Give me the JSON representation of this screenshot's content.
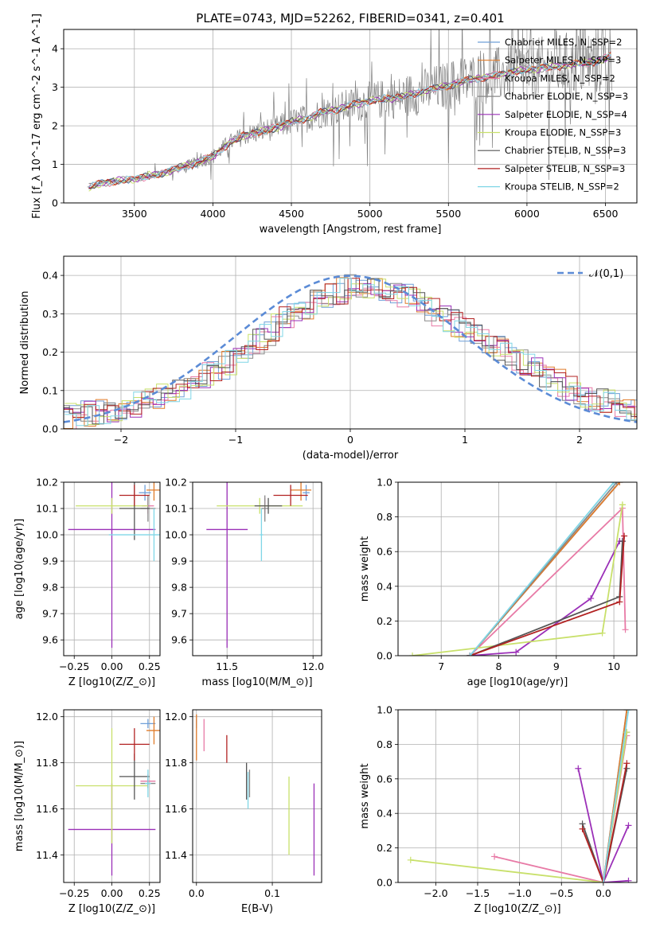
{
  "figure": {
    "title": "PLATE=0743, MJD=52262, FIBERID=0341, z=0.401"
  },
  "colors": {
    "Chabrier MILES": "#6f9fd8",
    "Salpeter MILES": "#e07b2a",
    "Kroupa MILES": "#e87aa6",
    "Chabrier ELODIE": "#888888",
    "Salpeter ELODIE": "#9b30b8",
    "Kroupa ELODIE": "#c8e06a",
    "Chabrier STELIB": "#555555",
    "Salpeter STELIB": "#b22222",
    "Kroupa STELIB": "#7fd6e6"
  },
  "chart_data": [
    {
      "id": "spectrum",
      "type": "line",
      "title": "PLATE=0743, MJD=52262, FIBERID=0341, z=0.401",
      "xlabel": "wavelength [Angstrom, rest frame]",
      "ylabel": "Flux [f_λ 10^-17 erg cm^-2 s^-1 A^-1]",
      "xlim": [
        3050,
        6700
      ],
      "ylim": [
        0,
        4.5
      ],
      "xticks": [
        3500,
        4000,
        4500,
        5000,
        5500,
        6000,
        6500
      ],
      "yticks": [
        0,
        1,
        2,
        3,
        4
      ],
      "legend": [
        "Chabrier MILES, N_SSP=2",
        "Salpeter MILES, N_SSP=3",
        "Kroupa MILES, N_SSP=2",
        "Chabrier ELODIE, N_SSP=3",
        "Salpeter ELODIE, N_SSP=4",
        "Kroupa ELODIE, N_SSP=3",
        "Chabrier STELIB, N_SSP=3",
        "Salpeter STELIB, N_SSP=3",
        "Kroupa STELIB, N_SSP=2"
      ],
      "legend_position": "right",
      "model_envelope": {
        "x": [
          3210,
          3300,
          3400,
          3500,
          3600,
          3700,
          3800,
          3900,
          4000,
          4100,
          4200,
          4300,
          4400,
          4500,
          4600,
          4700,
          4800,
          4900,
          5000,
          5100,
          5200,
          5300,
          5400,
          5500,
          5600,
          5700,
          5800,
          5900,
          6000,
          6100,
          6200,
          6300,
          6400,
          6500,
          6540
        ],
        "y": [
          0.4,
          0.52,
          0.58,
          0.62,
          0.7,
          0.8,
          0.92,
          1.05,
          1.2,
          1.55,
          1.75,
          1.85,
          1.95,
          2.1,
          2.2,
          2.35,
          2.45,
          2.55,
          2.65,
          2.7,
          2.75,
          2.85,
          2.95,
          3.05,
          3.15,
          3.25,
          3.3,
          3.4,
          3.45,
          3.5,
          3.55,
          3.6,
          3.65,
          3.75,
          3.8
        ]
      },
      "observed_spectrum_range": [
        3200,
        6540
      ]
    },
    {
      "id": "residuals",
      "type": "line",
      "xlabel": "(data-model)/error",
      "ylabel": "Normed distribution",
      "xlim": [
        -2.5,
        2.5
      ],
      "ylim": [
        0,
        0.45
      ],
      "xticks": [
        -2,
        -1,
        0,
        1,
        2
      ],
      "yticks": [
        0.0,
        0.1,
        0.2,
        0.3,
        0.4
      ],
      "legend": [
        "𝒩(0,1)"
      ],
      "legend_position": "top-right",
      "histogram_envelope": {
        "x": [
          -2.5,
          -2.0,
          -1.5,
          -1.0,
          -0.5,
          0.0,
          0.5,
          1.0,
          1.5,
          2.0,
          2.5
        ],
        "y": [
          0.03,
          0.05,
          0.1,
          0.18,
          0.3,
          0.37,
          0.35,
          0.26,
          0.18,
          0.09,
          0.05
        ]
      }
    },
    {
      "id": "age_vs_Z",
      "type": "scatter",
      "xlabel": "Z [log10(Z/Z_⊙)]",
      "ylabel": "age [log10(age/yr)]",
      "xlim": [
        -0.32,
        0.32
      ],
      "ylim": [
        9.54,
        10.2
      ],
      "xticks": [
        -0.25,
        0.0,
        0.25
      ],
      "yticks": [
        9.6,
        9.7,
        9.8,
        9.9,
        10.0,
        10.1,
        10.2
      ],
      "points": [
        {
          "model": "Chabrier MILES",
          "x": 0.22,
          "y": 10.16,
          "xerr": 0.04,
          "yerr": 0.03
        },
        {
          "model": "Salpeter MILES",
          "x": 0.28,
          "y": 10.17,
          "xerr": 0.05,
          "yerr": 0.04
        },
        {
          "model": "Kroupa MILES",
          "x": 0.24,
          "y": 10.11,
          "xerr": 0.04,
          "yerr": 0.03
        },
        {
          "model": "Chabrier ELODIE",
          "x": 0.24,
          "y": 10.1,
          "xerr": 0.05,
          "yerr": 0.05
        },
        {
          "model": "Salpeter ELODIE",
          "x": 0.0,
          "y": 10.02,
          "xerr": 0.29,
          "yerr": 0.45
        },
        {
          "model": "Kroupa ELODIE",
          "x": 0.0,
          "y": 10.11,
          "xerr": 0.24,
          "yerr": 0.03
        },
        {
          "model": "Chabrier STELIB",
          "x": 0.15,
          "y": 10.1,
          "xerr": 0.1,
          "yerr": 0.12
        },
        {
          "model": "Salpeter STELIB",
          "x": 0.15,
          "y": 10.15,
          "xerr": 0.1,
          "yerr": 0.04
        },
        {
          "model": "Kroupa STELIB",
          "x": 0.28,
          "y": 10.0,
          "xerr": 0.3,
          "yerr": 0.1
        }
      ]
    },
    {
      "id": "age_vs_mass",
      "type": "scatter",
      "xlabel": "mass [log10(M/M_⊙)]",
      "ylabel": "",
      "xlim": [
        11.3,
        12.05
      ],
      "ylim": [
        9.54,
        10.2
      ],
      "xticks": [
        11.5,
        12.0
      ],
      "yticks": [
        9.6,
        9.7,
        9.8,
        9.9,
        10.0,
        10.1,
        10.2
      ],
      "points": [
        {
          "model": "Chabrier MILES",
          "x": 11.96,
          "y": 10.16,
          "xerr": 0.02,
          "yerr": 0.03
        },
        {
          "model": "Salpeter MILES",
          "x": 11.93,
          "y": 10.17,
          "xerr": 0.06,
          "yerr": 0.04
        },
        {
          "model": "Kroupa MILES",
          "x": 11.72,
          "y": 10.11,
          "xerr": 0.03,
          "yerr": 0.03
        },
        {
          "model": "Chabrier ELODIE",
          "x": 11.72,
          "y": 10.1,
          "xerr": 0.02,
          "yerr": 0.05
        },
        {
          "model": "Salpeter ELODIE",
          "x": 11.5,
          "y": 10.02,
          "xerr": 0.12,
          "yerr": 0.45
        },
        {
          "model": "Kroupa ELODIE",
          "x": 11.69,
          "y": 10.11,
          "xerr": 0.25,
          "yerr": 0.03
        },
        {
          "model": "Chabrier STELIB",
          "x": 11.74,
          "y": 10.11,
          "xerr": 0.08,
          "yerr": 0.03
        },
        {
          "model": "Salpeter STELIB",
          "x": 11.87,
          "y": 10.15,
          "xerr": 0.1,
          "yerr": 0.04
        },
        {
          "model": "Kroupa STELIB",
          "x": 11.7,
          "y": 10.0,
          "xerr": 0.01,
          "yerr": 0.1
        }
      ]
    },
    {
      "id": "weight_vs_age",
      "type": "line",
      "xlabel": "age [log10(age/yr)]",
      "ylabel": "mass weight",
      "xlim": [
        6.25,
        10.4
      ],
      "ylim": [
        0,
        1.0
      ],
      "xticks": [
        7,
        8,
        9,
        10
      ],
      "yticks": [
        0.0,
        0.2,
        0.4,
        0.6,
        0.8,
        1.0
      ],
      "series": [
        {
          "model": "Chabrier MILES",
          "x": [
            7.5,
            10.1
          ],
          "y": [
            0.0,
            1.0
          ]
        },
        {
          "model": "Salpeter MILES",
          "x": [
            7.5,
            10.1
          ],
          "y": [
            0.0,
            1.0
          ]
        },
        {
          "model": "Kroupa MILES",
          "x": [
            7.5,
            10.15,
            10.2
          ],
          "y": [
            0.0,
            0.85,
            0.15
          ]
        },
        {
          "model": "Chabrier ELODIE",
          "x": [
            7.5,
            10.05
          ],
          "y": [
            0.0,
            1.0
          ]
        },
        {
          "model": "Salpeter ELODIE",
          "x": [
            7.5,
            8.3,
            9.6,
            10.1,
            10.15
          ],
          "y": [
            0.0,
            0.02,
            0.33,
            0.66,
            0.66
          ]
        },
        {
          "model": "Kroupa ELODIE",
          "x": [
            6.5,
            9.8,
            10.15,
            10.15
          ],
          "y": [
            0.0,
            0.13,
            0.87,
            0.87
          ]
        },
        {
          "model": "Chabrier STELIB",
          "x": [
            7.5,
            10.1,
            10.15
          ],
          "y": [
            0.0,
            0.34,
            0.66
          ]
        },
        {
          "model": "Salpeter STELIB",
          "x": [
            7.5,
            10.1,
            10.18
          ],
          "y": [
            0.0,
            0.31,
            0.69
          ]
        },
        {
          "model": "Kroupa STELIB",
          "x": [
            7.5,
            10.0
          ],
          "y": [
            0.0,
            1.0
          ]
        }
      ]
    },
    {
      "id": "mass_vs_Z",
      "type": "scatter",
      "xlabel": "Z [log10(Z/Z_⊙)]",
      "ylabel": "mass [log10(M/M_⊙)]",
      "xlim": [
        -0.32,
        0.32
      ],
      "ylim": [
        11.28,
        12.03
      ],
      "xticks": [
        -0.25,
        0.0,
        0.25
      ],
      "yticks": [
        11.4,
        11.6,
        11.8,
        12.0
      ],
      "points": [
        {
          "model": "Chabrier MILES",
          "x": 0.24,
          "y": 11.97,
          "xerr": 0.05,
          "yerr": 0.02
        },
        {
          "model": "Salpeter MILES",
          "x": 0.28,
          "y": 11.94,
          "xerr": 0.05,
          "yerr": 0.06
        },
        {
          "model": "Kroupa MILES",
          "x": 0.24,
          "y": 11.72,
          "xerr": 0.05,
          "yerr": 0.03
        },
        {
          "model": "Chabrier ELODIE",
          "x": 0.24,
          "y": 11.71,
          "xerr": 0.05,
          "yerr": 0.02
        },
        {
          "model": "Salpeter ELODIE",
          "x": 0.0,
          "y": 11.51,
          "xerr": 0.29,
          "yerr": 0.2
        },
        {
          "model": "Kroupa ELODIE",
          "x": 0.0,
          "y": 11.7,
          "xerr": 0.24,
          "yerr": 0.25
        },
        {
          "model": "Chabrier STELIB",
          "x": 0.15,
          "y": 11.74,
          "xerr": 0.1,
          "yerr": 0.1
        },
        {
          "model": "Salpeter STELIB",
          "x": 0.15,
          "y": 11.88,
          "xerr": 0.1,
          "yerr": 0.07
        },
        {
          "model": "Kroupa STELIB",
          "x": 0.24,
          "y": 11.71,
          "xerr": 0.02,
          "yerr": 0.06
        }
      ]
    },
    {
      "id": "mass_vs_EBV",
      "type": "scatter",
      "xlabel": "E(B-V)",
      "ylabel": "",
      "xlim": [
        -0.005,
        0.165
      ],
      "ylim": [
        11.28,
        12.03
      ],
      "xticks": [
        0.0,
        0.1
      ],
      "yticks": [
        11.4,
        11.6,
        11.8,
        12.0
      ],
      "points": [
        {
          "model": "Chabrier MILES",
          "x": 0.0,
          "y": 11.97,
          "yerr": 0.02
        },
        {
          "model": "Salpeter MILES",
          "x": 0.0,
          "y": 11.91,
          "yerr": 0.1
        },
        {
          "model": "Kroupa MILES",
          "x": 0.01,
          "y": 11.92,
          "yerr": 0.07
        },
        {
          "model": "Chabrier ELODIE",
          "x": 0.07,
          "y": 11.71,
          "yerr": 0.06
        },
        {
          "model": "Salpeter ELODIE",
          "x": 0.155,
          "y": 11.51,
          "yerr": 0.2
        },
        {
          "model": "Kroupa ELODIE",
          "x": 0.122,
          "y": 11.57,
          "yerr": 0.17
        },
        {
          "model": "Chabrier STELIB",
          "x": 0.066,
          "y": 11.72,
          "yerr": 0.08
        },
        {
          "model": "Salpeter STELIB",
          "x": 0.04,
          "y": 11.86,
          "yerr": 0.06
        },
        {
          "model": "Kroupa STELIB",
          "x": 0.068,
          "y": 11.68,
          "yerr": 0.08
        }
      ]
    },
    {
      "id": "weight_vs_Z",
      "type": "line",
      "xlabel": "Z [log10(Z/Z_⊙)]",
      "ylabel": "mass weight",
      "xlim": [
        -2.45,
        0.4
      ],
      "ylim": [
        0,
        1.0
      ],
      "xticks": [
        -2.0,
        -1.5,
        -1.0,
        -0.5,
        0.0
      ],
      "yticks": [
        0.0,
        0.2,
        0.4,
        0.6,
        0.8,
        1.0
      ],
      "rays": [
        {
          "model": "Chabrier MILES",
          "x": 0.28,
          "y": 1.0
        },
        {
          "model": "Salpeter MILES",
          "x": 0.28,
          "y": 1.0
        },
        {
          "model": "Kroupa MILES",
          "x": -1.3,
          "y": 0.15
        },
        {
          "model": "Kroupa MILES",
          "x": 0.28,
          "y": 0.85
        },
        {
          "model": "Chabrier ELODIE",
          "x": 0.28,
          "y": 0.87
        },
        {
          "model": "Salpeter ELODIE",
          "x": -0.3,
          "y": 0.66
        },
        {
          "model": "Salpeter ELODIE",
          "x": 0.3,
          "y": 0.33
        },
        {
          "model": "Salpeter ELODIE",
          "x": 0.3,
          "y": 0.01
        },
        {
          "model": "Kroupa ELODIE",
          "x": -2.3,
          "y": 0.13
        },
        {
          "model": "Kroupa ELODIE",
          "x": 0.28,
          "y": 0.87
        },
        {
          "model": "Chabrier STELIB",
          "x": -0.25,
          "y": 0.34
        },
        {
          "model": "Chabrier STELIB",
          "x": 0.28,
          "y": 0.66
        },
        {
          "model": "Salpeter STELIB",
          "x": -0.25,
          "y": 0.31
        },
        {
          "model": "Salpeter STELIB",
          "x": 0.28,
          "y": 0.69
        },
        {
          "model": "Kroupa STELIB",
          "x": 0.3,
          "y": 1.0
        }
      ]
    }
  ]
}
